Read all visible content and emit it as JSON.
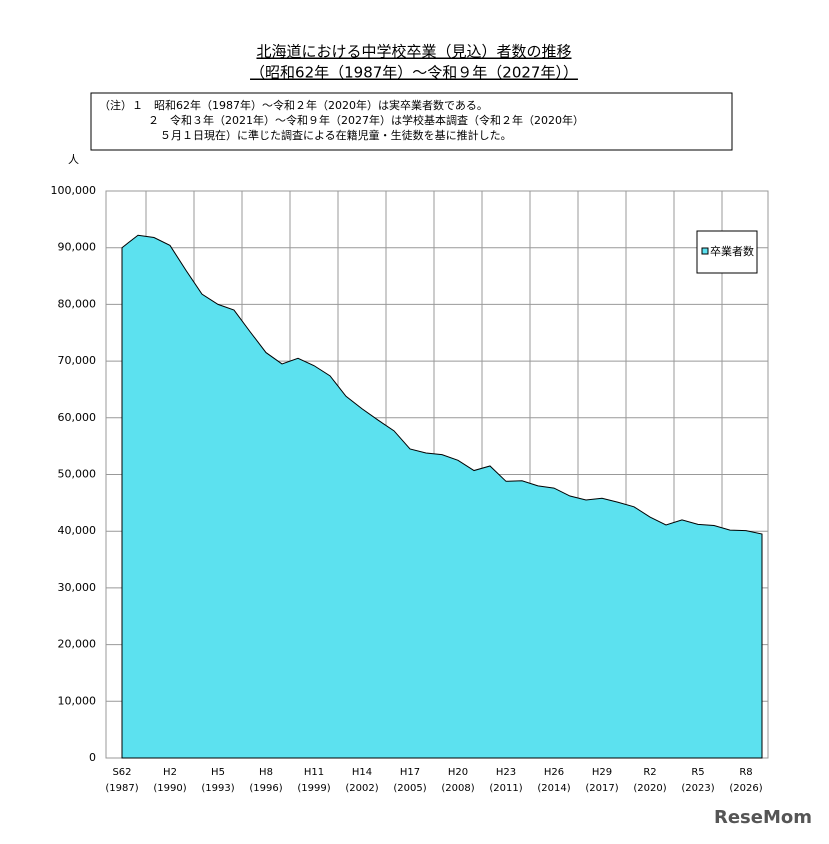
{
  "chart_data": {
    "type": "area",
    "title": "北海道における中学校卒業（見込）者数の推移",
    "subtitle": "（昭和62年（1987年）～令和９年（2027年））",
    "notes": [
      "（注）１　昭和62年（1987年）～令和２年（2020年）は実卒業者数である。",
      "２　令和３年（2021年）～令和９年（2027年）は学校基本調査（令和２年（2020年）",
      "５月１日現在）に準じた調査による在籍児童・生徒数を基に推計した。"
    ],
    "y_label": "人",
    "watermark": "ReseMom",
    "categories": [
      {
        "era": "S62",
        "year": "(1987)"
      },
      null,
      null,
      {
        "era": "H2",
        "year": "(1990)"
      },
      null,
      null,
      {
        "era": "H5",
        "year": "(1993)"
      },
      null,
      null,
      {
        "era": "H8",
        "year": "(1996)"
      },
      null,
      null,
      {
        "era": "H11",
        "year": "(1999)"
      },
      null,
      null,
      {
        "era": "H14",
        "year": "(2002)"
      },
      null,
      null,
      {
        "era": "H17",
        "year": "(2005)"
      },
      null,
      null,
      {
        "era": "H20",
        "year": "(2008)"
      },
      null,
      null,
      {
        "era": "H23",
        "year": "(2011)"
      },
      null,
      null,
      {
        "era": "H26",
        "year": "(2014)"
      },
      null,
      null,
      {
        "era": "H29",
        "year": "(2017)"
      },
      null,
      null,
      {
        "era": "R2",
        "year": "(2020)"
      },
      null,
      null,
      {
        "era": "R5",
        "year": "(2023)"
      },
      null,
      null,
      {
        "era": "R8",
        "year": "(2026)"
      },
      null
    ],
    "series": [
      {
        "name": "卒業者数",
        "color": "#5ce1ef",
        "values": [
          90000,
          92200,
          91800,
          90400,
          86000,
          81800,
          80000,
          79000,
          75200,
          71500,
          69500,
          70500,
          69200,
          67400,
          63800,
          61600,
          59600,
          57700,
          54500,
          53800,
          53500,
          52500,
          50700,
          51500,
          48800,
          48900,
          48000,
          47600,
          46200,
          45500,
          45800,
          45100,
          44300,
          42500,
          41100,
          42000,
          41200,
          41000,
          40200,
          40100,
          39500
        ]
      }
    ],
    "ylim": [
      0,
      100000
    ],
    "yticks": [
      0,
      {
        "value": 10000,
        "label": "10,000"
      },
      {
        "value": 20000,
        "label": "20,000"
      },
      {
        "value": 30000,
        "label": "30,000"
      },
      {
        "value": 40000,
        "label": "40,000"
      },
      {
        "value": 50000,
        "label": "50,000"
      },
      {
        "value": 60000,
        "label": "60,000"
      },
      {
        "value": 70000,
        "label": "70,000"
      },
      {
        "value": 80000,
        "label": "80,000"
      },
      {
        "value": 90000,
        "label": "90,000"
      },
      {
        "value": 100000,
        "label": "100,000"
      }
    ],
    "grid": true,
    "legend": "right"
  }
}
